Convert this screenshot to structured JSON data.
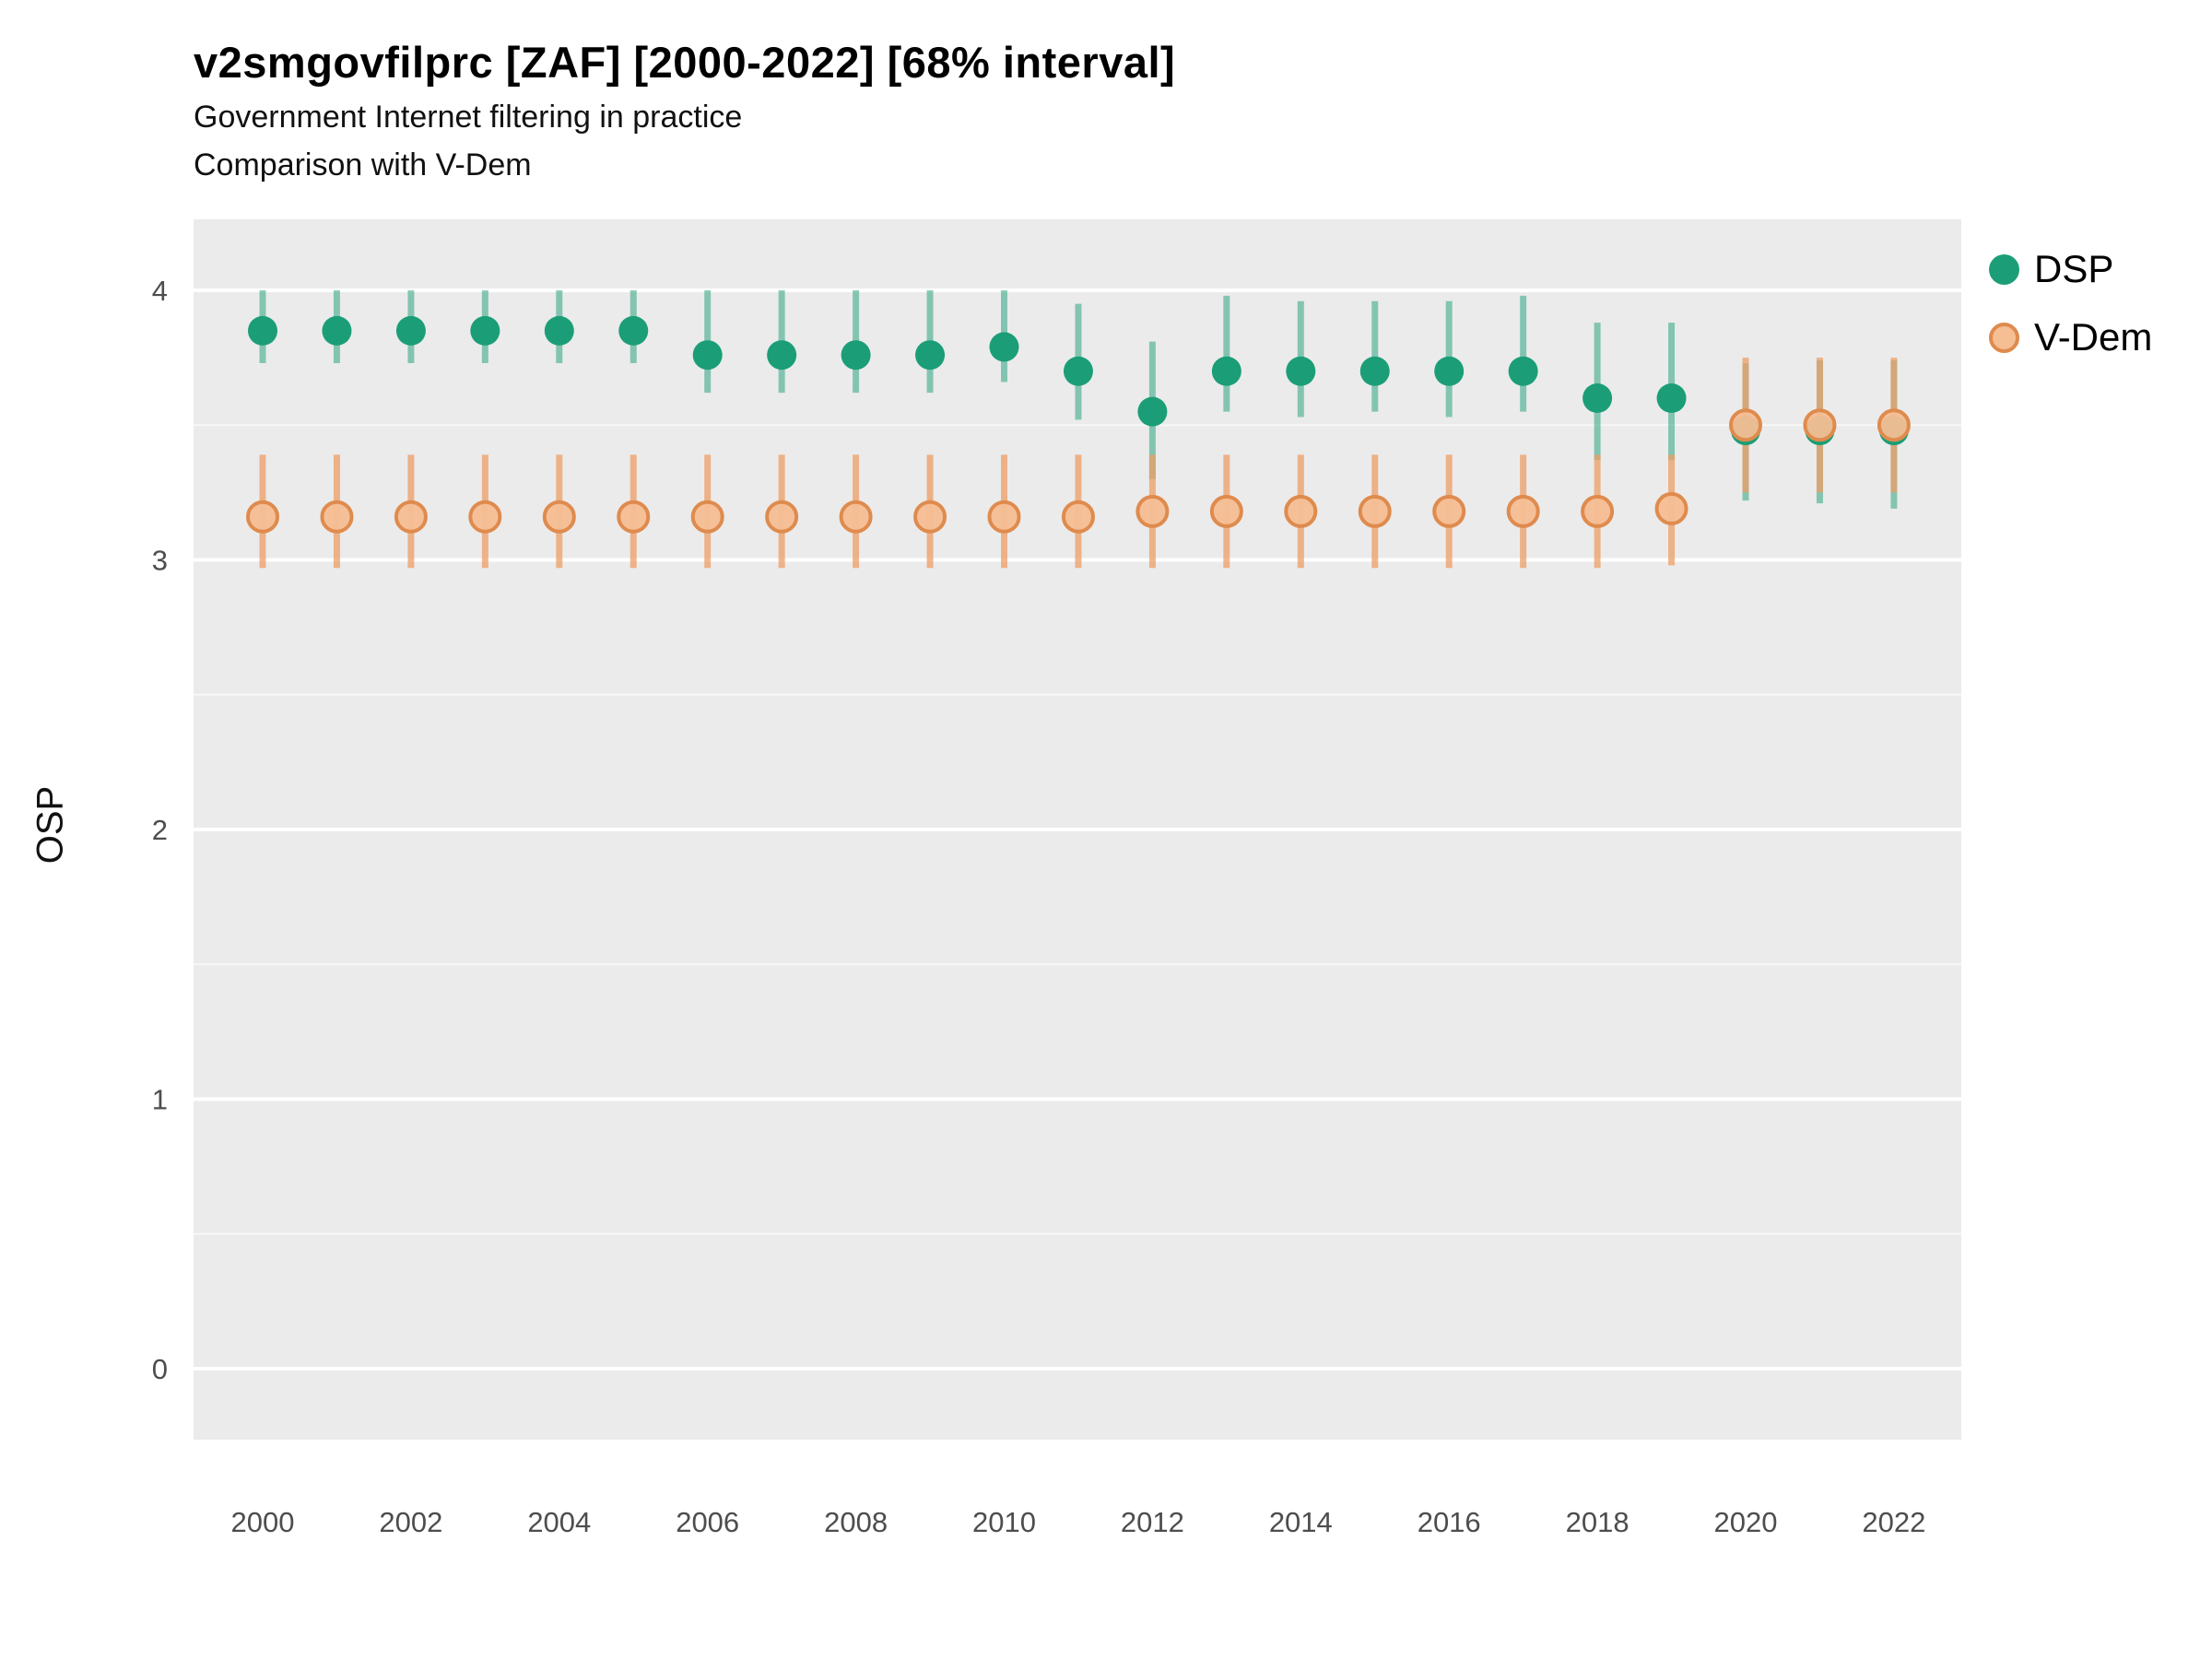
{
  "header": {
    "title": "v2smgovfilprc [ZAF] [2000-2022] [68% interval]",
    "subtitle1": "Government Internet filtering in practice",
    "subtitle2": "Comparison with V-Dem"
  },
  "axes": {
    "ylabel": "OSP"
  },
  "colors": {
    "panel_bg": "#EBEBEB",
    "gridline": "#FFFFFF",
    "tick_text": "#4D4D4D",
    "dsp_green": "#1B9E77",
    "vdem_fill": "#F5BE93",
    "vdem_stroke": "#DF8B4E",
    "vdem_bar": "#ED9D66"
  },
  "legend": {
    "items": [
      {
        "label": "DSP"
      },
      {
        "label": "V-Dem"
      }
    ]
  },
  "chart_data": {
    "type": "scatter",
    "title": "v2smgovfilprc [ZAF] [2000-2022] [68% interval]",
    "subtitle": "Government Internet filtering in practice / Comparison with V-Dem",
    "xlabel": "",
    "ylabel": "OSP",
    "grid": "on",
    "legend_position": "right",
    "ylim": [
      -0.27,
      4.26
    ],
    "yticks": [
      0,
      1,
      2,
      3,
      4
    ],
    "yminor": [
      0.5,
      1.5,
      2.5,
      3.5
    ],
    "xticks": [
      2000,
      2002,
      2004,
      2006,
      2008,
      2010,
      2012,
      2014,
      2016,
      2018,
      2020,
      2022
    ],
    "x": [
      2000,
      2001,
      2002,
      2003,
      2004,
      2005,
      2006,
      2007,
      2008,
      2009,
      2010,
      2011,
      2012,
      2013,
      2014,
      2015,
      2016,
      2017,
      2018,
      2019,
      2020,
      2021,
      2022
    ],
    "interval": "68%",
    "series": [
      {
        "name": "DSP",
        "fill": "#1B9E77",
        "stroke": "",
        "bar_color": "#1B9E77",
        "bar_opacity": 0.5,
        "point_opacity": 1,
        "values": [
          3.85,
          3.85,
          3.85,
          3.85,
          3.85,
          3.85,
          3.76,
          3.76,
          3.76,
          3.76,
          3.79,
          3.7,
          3.55,
          3.7,
          3.7,
          3.7,
          3.7,
          3.7,
          3.6,
          3.6,
          3.48,
          3.48,
          3.48
        ],
        "lower": [
          3.73,
          3.73,
          3.73,
          3.73,
          3.73,
          3.73,
          3.62,
          3.62,
          3.62,
          3.62,
          3.66,
          3.52,
          3.3,
          3.55,
          3.53,
          3.55,
          3.53,
          3.55,
          3.37,
          3.37,
          3.22,
          3.21,
          3.19
        ],
        "upper": [
          4.0,
          4.0,
          4.0,
          4.0,
          4.0,
          4.0,
          4.0,
          4.0,
          4.0,
          4.0,
          4.0,
          3.95,
          3.81,
          3.98,
          3.96,
          3.96,
          3.96,
          3.98,
          3.88,
          3.88,
          3.73,
          3.74,
          3.74
        ]
      },
      {
        "name": "V-Dem",
        "fill": "#F5BE93",
        "stroke": "#DF8B4E",
        "bar_color": "#ED9D66",
        "bar_opacity": 0.75,
        "point_opacity": 0.95,
        "values": [
          3.16,
          3.16,
          3.16,
          3.16,
          3.16,
          3.16,
          3.16,
          3.16,
          3.16,
          3.16,
          3.16,
          3.16,
          3.18,
          3.18,
          3.18,
          3.18,
          3.18,
          3.18,
          3.18,
          3.19,
          3.5,
          3.5,
          3.5
        ],
        "lower": [
          2.97,
          2.97,
          2.97,
          2.97,
          2.97,
          2.97,
          2.97,
          2.97,
          2.97,
          2.97,
          2.97,
          2.97,
          2.97,
          2.97,
          2.97,
          2.97,
          2.97,
          2.97,
          2.97,
          2.98,
          3.25,
          3.25,
          3.25
        ],
        "upper": [
          3.39,
          3.39,
          3.39,
          3.39,
          3.39,
          3.39,
          3.39,
          3.39,
          3.39,
          3.39,
          3.39,
          3.39,
          3.39,
          3.39,
          3.39,
          3.39,
          3.39,
          3.39,
          3.39,
          3.39,
          3.75,
          3.75,
          3.75
        ]
      }
    ]
  }
}
